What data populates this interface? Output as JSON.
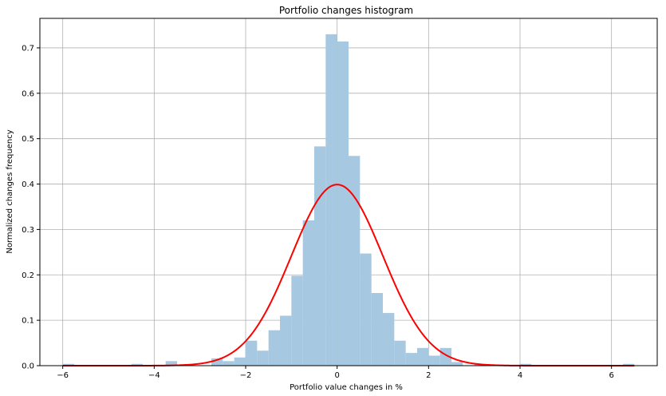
{
  "chart_data": {
    "type": "bar",
    "title": "Portfolio changes histogram",
    "xlabel": "Portfolio value changes in %",
    "ylabel": "Normalized changes frequency",
    "xlim": [
      -6.5,
      7.0
    ],
    "ylim": [
      0,
      0.765
    ],
    "grid": true,
    "x_ticks": [
      -6,
      -4,
      -2,
      0,
      2,
      4,
      6
    ],
    "x_tick_labels": [
      "−6",
      "−4",
      "−2",
      "0",
      "2",
      "4",
      "6"
    ],
    "y_ticks": [
      0.0,
      0.1,
      0.2,
      0.3,
      0.4,
      0.5,
      0.6,
      0.7
    ],
    "y_tick_labels": [
      "0.0",
      "0.1",
      "0.2",
      "0.3",
      "0.4",
      "0.5",
      "0.6",
      "0.7"
    ],
    "histogram": {
      "color": "#a6c8e0",
      "bin_width": 0.25,
      "bin_left_edges": [
        -6.0,
        -4.5,
        -3.75,
        -2.75,
        -2.5,
        -2.25,
        -2.0,
        -1.75,
        -1.5,
        -1.25,
        -1.0,
        -0.75,
        -0.5,
        -0.25,
        0.0,
        0.25,
        0.5,
        0.75,
        1.0,
        1.25,
        1.5,
        1.75,
        2.0,
        2.25,
        2.5,
        3.0,
        4.0,
        6.25
      ],
      "values": [
        0.004,
        0.004,
        0.01,
        0.016,
        0.01,
        0.018,
        0.055,
        0.033,
        0.078,
        0.11,
        0.198,
        0.32,
        0.483,
        0.73,
        0.714,
        0.462,
        0.247,
        0.16,
        0.116,
        0.055,
        0.028,
        0.039,
        0.022,
        0.039,
        0.008,
        0.004,
        0.004,
        0.004
      ]
    },
    "curve": {
      "color": "#ff0000",
      "description_type": "normal_pdf",
      "mean": 0,
      "std": 1,
      "x_range": [
        -6.0,
        6.5
      ]
    }
  }
}
